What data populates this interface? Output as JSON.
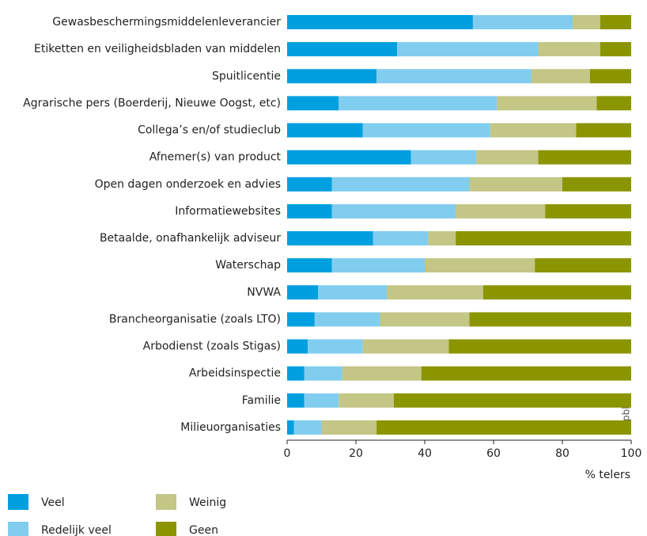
{
  "chart_data": {
    "type": "stacked_barh",
    "categories": [
      "Gewasbeschermingsmiddelenleverancier",
      "Etiketten en veiligheidsbladen van middelen",
      "Spuitlicentie",
      "Agrarische pers (Boerderij, Nieuwe Oogst, etc)",
      "Collega’s en/of studieclub",
      "Afnemer(s) van product",
      "Open dagen onderzoek en advies",
      "Informatiewebsites",
      "Betaalde, onafhankelijk adviseur",
      "Waterschap",
      "NVWA",
      "Brancheorganisatie (zoals LTO)",
      "Arbodienst (zoals Stigas)",
      "Arbeidsinspectie",
      "Familie",
      "Milieuorganisaties"
    ],
    "series": [
      {
        "name": "Veel",
        "color": "#009fe0",
        "values": [
          54,
          32,
          26,
          15,
          22,
          36,
          13,
          13,
          25,
          13,
          9,
          8,
          6,
          5,
          5,
          2
        ]
      },
      {
        "name": "Redelijk veel",
        "color": "#80cdef",
        "values": [
          29,
          41,
          45,
          46,
          37,
          19,
          40,
          36,
          16,
          27,
          20,
          19,
          16,
          11,
          10,
          8
        ]
      },
      {
        "name": "Weinig",
        "color": "#c3c685",
        "values": [
          8,
          18,
          17,
          29,
          25,
          18,
          27,
          26,
          8,
          32,
          28,
          26,
          25,
          23,
          16,
          16
        ]
      },
      {
        "name": "Geen",
        "color": "#8a9500",
        "values": [
          9,
          9,
          12,
          10,
          16,
          27,
          20,
          25,
          51,
          28,
          43,
          47,
          53,
          61,
          69,
          74
        ]
      }
    ],
    "xlim": [
      0,
      100
    ],
    "xticks": [
      0,
      20,
      40,
      60,
      80,
      100
    ],
    "xlabel": "% telers",
    "source": "pbl.nl",
    "legend": "bottom"
  }
}
